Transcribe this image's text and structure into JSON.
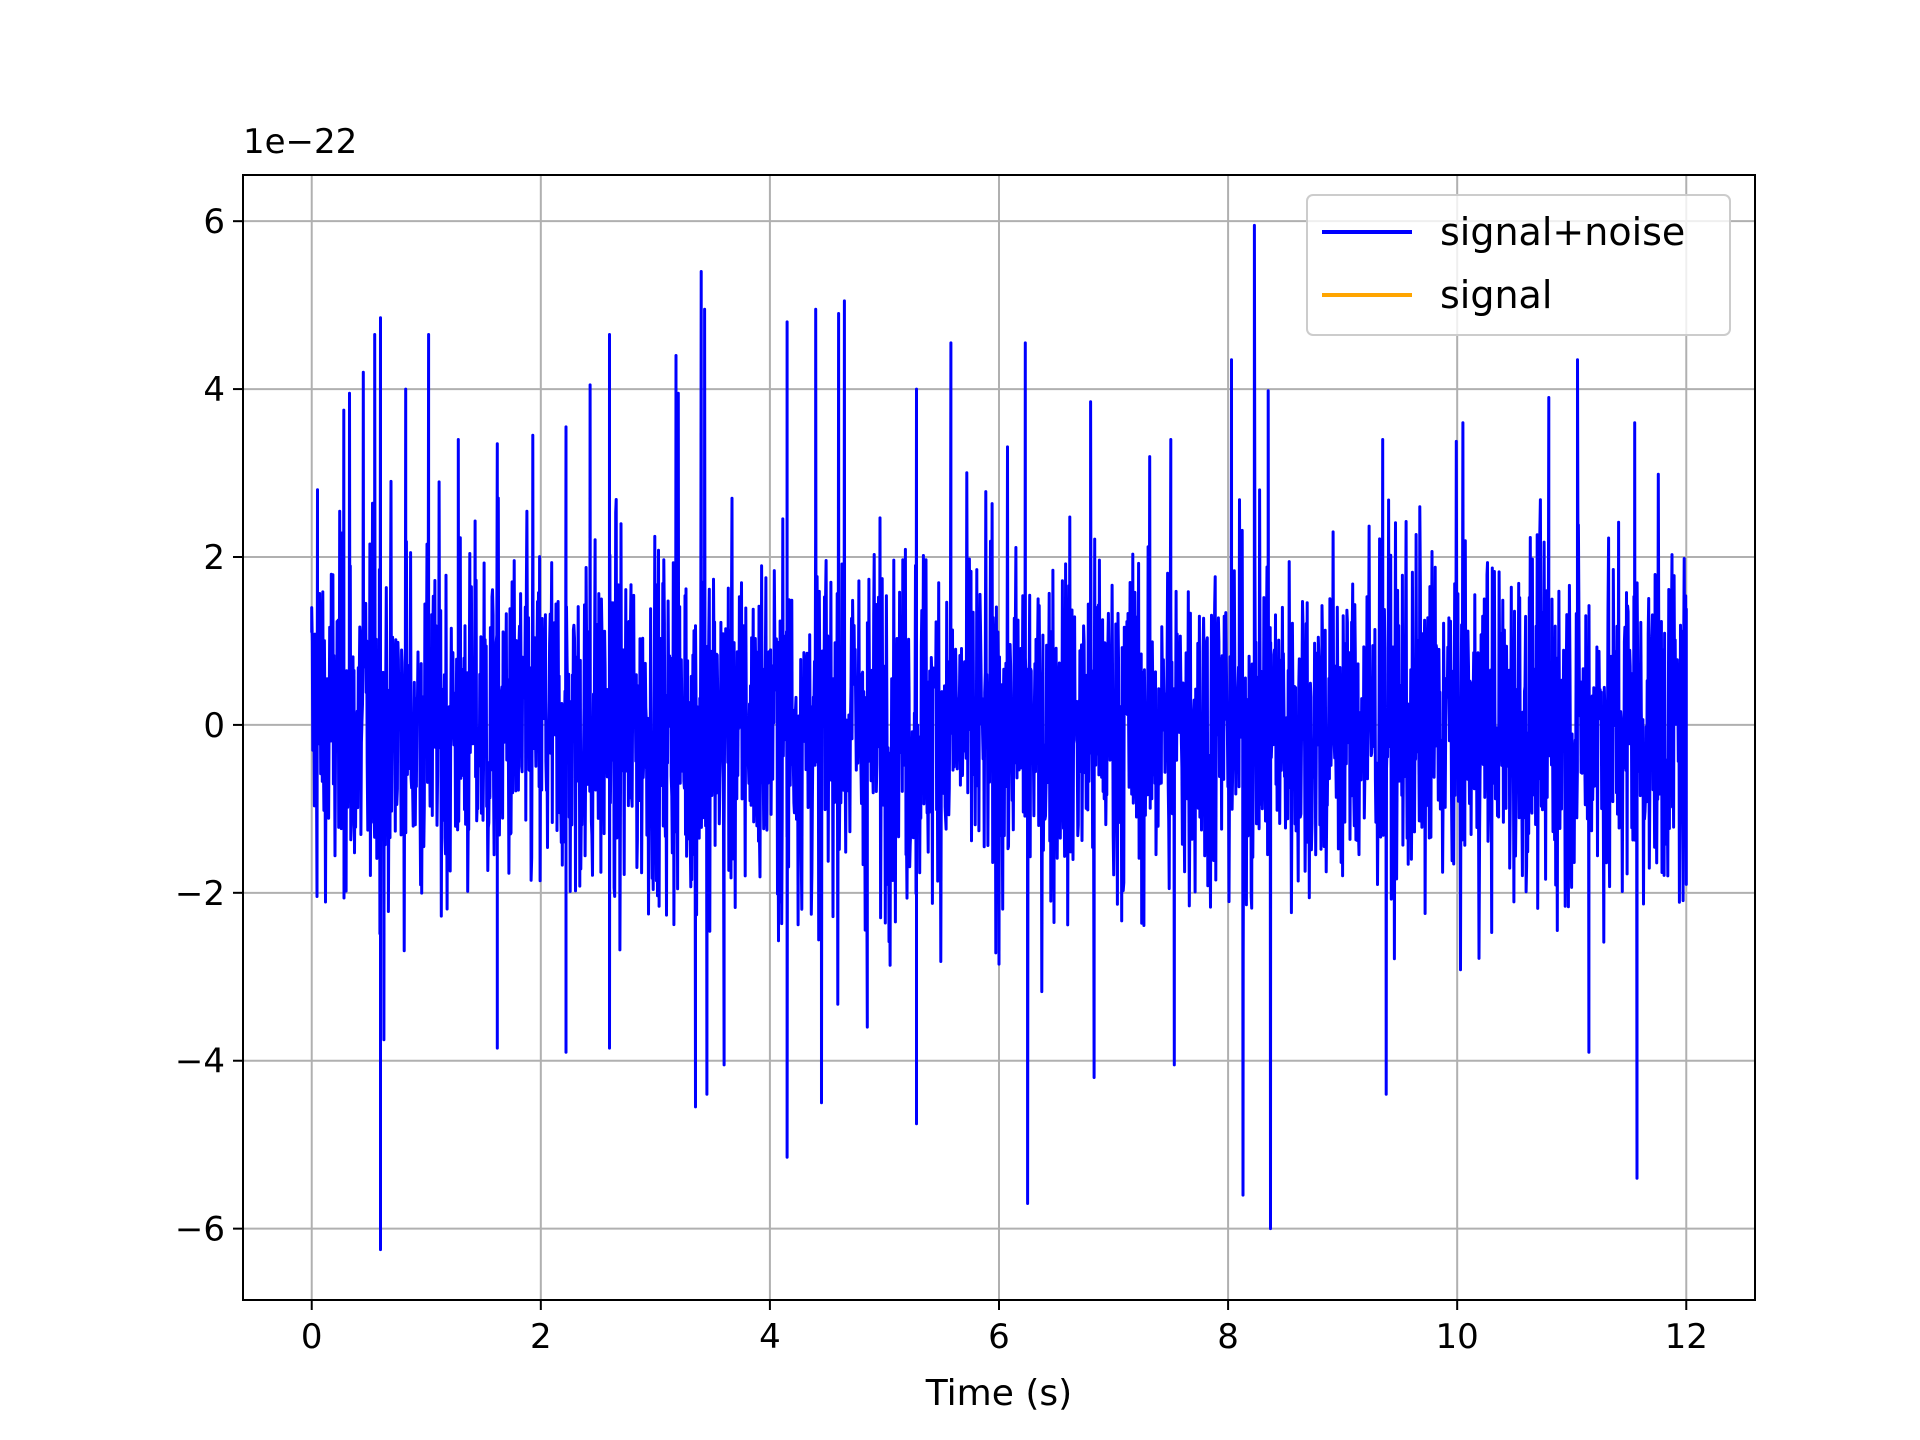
{
  "chart_data": {
    "type": "line",
    "title": "",
    "xlabel": "Time (s)",
    "ylabel": "",
    "y_offset_label": "1e−22",
    "xlim": [
      -0.6,
      12.6
    ],
    "ylim": [
      -6.85,
      6.55
    ],
    "x_ticks": [
      0,
      2,
      4,
      6,
      8,
      10,
      12
    ],
    "x_tick_labels": [
      "0",
      "2",
      "4",
      "6",
      "8",
      "10",
      "12"
    ],
    "y_ticks": [
      -6,
      -4,
      -2,
      0,
      2,
      4,
      6
    ],
    "y_tick_labels": [
      "−6",
      "−4",
      "−2",
      "0",
      "2",
      "4",
      "6"
    ],
    "grid": true,
    "legend_position": "upper right",
    "series": [
      {
        "name": "signal+noise",
        "color": "#0000ff",
        "x_start": 0,
        "x_end": 12,
        "envelope": {
          "typical_range": [
            -2.0,
            2.0
          ],
          "max": 5.95,
          "min": -6.25
        },
        "notable_points": [
          {
            "x": 0.0,
            "y": 1.1
          },
          {
            "x": 0.05,
            "y": 2.8
          },
          {
            "x": 0.28,
            "y": 3.75
          },
          {
            "x": 0.33,
            "y": 3.95
          },
          {
            "x": 0.45,
            "y": 4.2
          },
          {
            "x": 0.55,
            "y": 4.65
          },
          {
            "x": 0.6,
            "y": 4.85
          },
          {
            "x": 0.6,
            "y": -6.25
          },
          {
            "x": 0.63,
            "y": -3.75
          },
          {
            "x": 0.82,
            "y": 4.0
          },
          {
            "x": 1.02,
            "y": 4.65
          },
          {
            "x": 1.28,
            "y": 3.4
          },
          {
            "x": 1.62,
            "y": 3.35
          },
          {
            "x": 1.62,
            "y": -3.85
          },
          {
            "x": 1.93,
            "y": 3.45
          },
          {
            "x": 2.22,
            "y": 3.55
          },
          {
            "x": 2.22,
            "y": -3.9
          },
          {
            "x": 2.43,
            "y": 4.05
          },
          {
            "x": 2.6,
            "y": 4.65
          },
          {
            "x": 2.6,
            "y": -3.85
          },
          {
            "x": 3.18,
            "y": 4.4
          },
          {
            "x": 3.2,
            "y": 3.95
          },
          {
            "x": 3.35,
            "y": -4.55
          },
          {
            "x": 3.4,
            "y": 5.4
          },
          {
            "x": 3.43,
            "y": 4.95
          },
          {
            "x": 3.45,
            "y": -4.4
          },
          {
            "x": 3.6,
            "y": -4.05
          },
          {
            "x": 4.15,
            "y": 4.8
          },
          {
            "x": 4.15,
            "y": -5.15
          },
          {
            "x": 4.4,
            "y": 4.95
          },
          {
            "x": 4.45,
            "y": -4.5
          },
          {
            "x": 4.6,
            "y": 4.9
          },
          {
            "x": 4.65,
            "y": 5.05
          },
          {
            "x": 4.85,
            "y": -3.6
          },
          {
            "x": 5.28,
            "y": 4.0
          },
          {
            "x": 5.28,
            "y": -4.75
          },
          {
            "x": 5.58,
            "y": 4.55
          },
          {
            "x": 6.23,
            "y": 4.55
          },
          {
            "x": 6.25,
            "y": -5.7
          },
          {
            "x": 6.8,
            "y": 3.85
          },
          {
            "x": 6.83,
            "y": -4.2
          },
          {
            "x": 7.5,
            "y": 3.4
          },
          {
            "x": 7.53,
            "y": -4.05
          },
          {
            "x": 8.03,
            "y": 4.35
          },
          {
            "x": 8.13,
            "y": -5.6
          },
          {
            "x": 8.23,
            "y": 5.95
          },
          {
            "x": 8.35,
            "y": 3.98
          },
          {
            "x": 8.37,
            "y": -6.0
          },
          {
            "x": 9.35,
            "y": 3.4
          },
          {
            "x": 9.38,
            "y": -4.4
          },
          {
            "x": 10.05,
            "y": 3.6
          },
          {
            "x": 10.8,
            "y": 3.9
          },
          {
            "x": 11.05,
            "y": 4.35
          },
          {
            "x": 11.15,
            "y": -3.9
          },
          {
            "x": 11.55,
            "y": 3.6
          },
          {
            "x": 11.57,
            "y": -5.4
          },
          {
            "x": 12.0,
            "y": -1.9
          }
        ]
      },
      {
        "name": "signal",
        "color": "#ffa500",
        "values_note_absent": true
      }
    ]
  }
}
